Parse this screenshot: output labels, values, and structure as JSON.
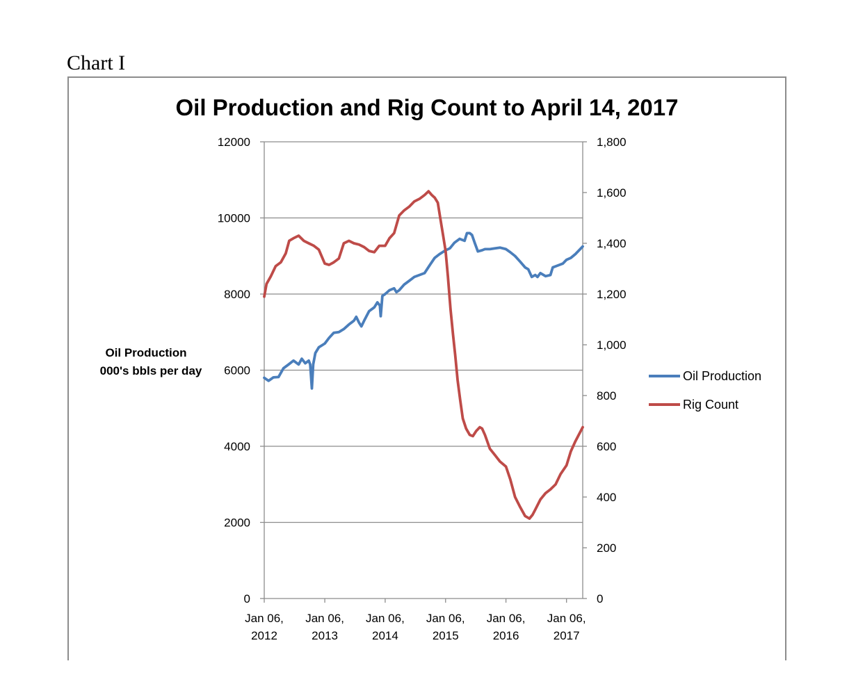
{
  "page": {
    "label": "Chart I"
  },
  "chart_data": {
    "type": "line",
    "title": "Oil Production and Rig Count to April 14, 2017",
    "ylabel_left": [
      "Oil Production",
      "000's bbls per day"
    ],
    "ylabel_right": "",
    "x_ticks": [
      [
        "Jan 06,",
        "2012"
      ],
      [
        "Jan 06,",
        "2013"
      ],
      [
        "Jan 06,",
        "2014"
      ],
      [
        "Jan 06,",
        "2015"
      ],
      [
        "Jan 06,",
        "2016"
      ],
      [
        "Jan 06,",
        "2017"
      ]
    ],
    "x_tick_dates": [
      "2012-01-06",
      "2013-01-06",
      "2014-01-06",
      "2015-01-06",
      "2016-01-06",
      "2017-01-06"
    ],
    "x_range": [
      "2012-01-06",
      "2017-04-14"
    ],
    "y_left_ticks": [
      "0",
      "2000",
      "4000",
      "6000",
      "8000",
      "10000",
      "12000"
    ],
    "y_left_range": [
      0,
      12000
    ],
    "y_right_ticks": [
      "0",
      "200",
      "400",
      "600",
      "800",
      "1,000",
      "1,200",
      "1,400",
      "1,600",
      "1,800"
    ],
    "y_right_range": [
      0,
      1800
    ],
    "grid": true,
    "legend": "right",
    "series": [
      {
        "name": "Oil Production",
        "axis": "left",
        "color": "#4a7ebb",
        "points": [
          [
            "2012-01-06",
            5800
          ],
          [
            "2012-02-01",
            5720
          ],
          [
            "2012-03-01",
            5810
          ],
          [
            "2012-04-01",
            5820
          ],
          [
            "2012-05-01",
            6050
          ],
          [
            "2012-06-01",
            6150
          ],
          [
            "2012-07-01",
            6250
          ],
          [
            "2012-08-01",
            6150
          ],
          [
            "2012-08-20",
            6300
          ],
          [
            "2012-09-10",
            6180
          ],
          [
            "2012-10-01",
            6250
          ],
          [
            "2012-10-10",
            6150
          ],
          [
            "2012-10-20",
            5520
          ],
          [
            "2012-10-28",
            6150
          ],
          [
            "2012-11-10",
            6450
          ],
          [
            "2012-12-01",
            6600
          ],
          [
            "2013-01-06",
            6700
          ],
          [
            "2013-02-01",
            6850
          ],
          [
            "2013-03-01",
            6980
          ],
          [
            "2013-04-01",
            7000
          ],
          [
            "2013-05-01",
            7080
          ],
          [
            "2013-06-01",
            7200
          ],
          [
            "2013-07-01",
            7300
          ],
          [
            "2013-07-15",
            7400
          ],
          [
            "2013-08-01",
            7250
          ],
          [
            "2013-08-15",
            7150
          ],
          [
            "2013-09-01",
            7300
          ],
          [
            "2013-10-01",
            7550
          ],
          [
            "2013-11-01",
            7650
          ],
          [
            "2013-11-20",
            7780
          ],
          [
            "2013-12-05",
            7700
          ],
          [
            "2013-12-10",
            7420
          ],
          [
            "2013-12-20",
            7950
          ],
          [
            "2014-01-06",
            8000
          ],
          [
            "2014-02-01",
            8100
          ],
          [
            "2014-03-01",
            8150
          ],
          [
            "2014-03-15",
            8050
          ],
          [
            "2014-04-01",
            8100
          ],
          [
            "2014-05-01",
            8250
          ],
          [
            "2014-06-01",
            8350
          ],
          [
            "2014-07-01",
            8450
          ],
          [
            "2014-08-01",
            8500
          ],
          [
            "2014-09-01",
            8550
          ],
          [
            "2014-10-01",
            8750
          ],
          [
            "2014-11-01",
            8950
          ],
          [
            "2014-12-01",
            9050
          ],
          [
            "2015-01-06",
            9150
          ],
          [
            "2015-02-01",
            9200
          ],
          [
            "2015-03-01",
            9350
          ],
          [
            "2015-04-01",
            9450
          ],
          [
            "2015-05-01",
            9400
          ],
          [
            "2015-05-15",
            9600
          ],
          [
            "2015-06-01",
            9600
          ],
          [
            "2015-06-15",
            9550
          ],
          [
            "2015-07-01",
            9350
          ],
          [
            "2015-07-20",
            9120
          ],
          [
            "2015-08-15",
            9150
          ],
          [
            "2015-09-01",
            9180
          ],
          [
            "2015-10-01",
            9180
          ],
          [
            "2015-11-01",
            9200
          ],
          [
            "2015-12-01",
            9220
          ],
          [
            "2016-01-06",
            9180
          ],
          [
            "2016-02-01",
            9100
          ],
          [
            "2016-03-01",
            9000
          ],
          [
            "2016-04-01",
            8850
          ],
          [
            "2016-05-01",
            8700
          ],
          [
            "2016-05-20",
            8650
          ],
          [
            "2016-06-10",
            8450
          ],
          [
            "2016-07-01",
            8500
          ],
          [
            "2016-07-15",
            8450
          ],
          [
            "2016-08-01",
            8550
          ],
          [
            "2016-09-01",
            8470
          ],
          [
            "2016-10-01",
            8500
          ],
          [
            "2016-10-15",
            8700
          ],
          [
            "2016-11-15",
            8750
          ],
          [
            "2016-12-15",
            8800
          ],
          [
            "2017-01-06",
            8900
          ],
          [
            "2017-02-01",
            8950
          ],
          [
            "2017-03-01",
            9050
          ],
          [
            "2017-04-14",
            9250
          ]
        ]
      },
      {
        "name": "Rig Count",
        "axis": "right",
        "color": "#be4b48",
        "points": [
          [
            "2012-01-06",
            1190
          ],
          [
            "2012-01-20",
            1240
          ],
          [
            "2012-02-15",
            1270
          ],
          [
            "2012-03-15",
            1310
          ],
          [
            "2012-04-15",
            1325
          ],
          [
            "2012-05-15",
            1360
          ],
          [
            "2012-06-05",
            1410
          ],
          [
            "2012-07-01",
            1420
          ],
          [
            "2012-08-01",
            1430
          ],
          [
            "2012-09-01",
            1410
          ],
          [
            "2012-10-01",
            1400
          ],
          [
            "2012-11-01",
            1390
          ],
          [
            "2012-12-01",
            1375
          ],
          [
            "2013-01-06",
            1320
          ],
          [
            "2013-02-01",
            1315
          ],
          [
            "2013-03-01",
            1325
          ],
          [
            "2013-04-01",
            1340
          ],
          [
            "2013-05-01",
            1400
          ],
          [
            "2013-06-01",
            1410
          ],
          [
            "2013-07-01",
            1400
          ],
          [
            "2013-08-01",
            1395
          ],
          [
            "2013-09-01",
            1385
          ],
          [
            "2013-10-01",
            1370
          ],
          [
            "2013-11-01",
            1365
          ],
          [
            "2013-12-01",
            1390
          ],
          [
            "2014-01-06",
            1390
          ],
          [
            "2014-02-01",
            1420
          ],
          [
            "2014-03-01",
            1440
          ],
          [
            "2014-04-01",
            1510
          ],
          [
            "2014-05-01",
            1530
          ],
          [
            "2014-06-01",
            1545
          ],
          [
            "2014-07-01",
            1565
          ],
          [
            "2014-08-01",
            1575
          ],
          [
            "2014-09-01",
            1590
          ],
          [
            "2014-09-25",
            1605
          ],
          [
            "2014-10-15",
            1590
          ],
          [
            "2014-11-01",
            1580
          ],
          [
            "2014-11-20",
            1560
          ],
          [
            "2014-12-05",
            1500
          ],
          [
            "2014-12-20",
            1440
          ],
          [
            "2015-01-06",
            1370
          ],
          [
            "2015-01-20",
            1270
          ],
          [
            "2015-02-05",
            1140
          ],
          [
            "2015-02-20",
            1040
          ],
          [
            "2015-03-05",
            960
          ],
          [
            "2015-03-20",
            860
          ],
          [
            "2015-04-05",
            780
          ],
          [
            "2015-04-20",
            710
          ],
          [
            "2015-05-10",
            670
          ],
          [
            "2015-06-01",
            645
          ],
          [
            "2015-06-20",
            640
          ],
          [
            "2015-07-10",
            660
          ],
          [
            "2015-08-01",
            675
          ],
          [
            "2015-08-15",
            670
          ],
          [
            "2015-09-01",
            645
          ],
          [
            "2015-10-01",
            590
          ],
          [
            "2015-11-01",
            565
          ],
          [
            "2015-12-01",
            540
          ],
          [
            "2016-01-06",
            520
          ],
          [
            "2016-02-01",
            470
          ],
          [
            "2016-03-01",
            400
          ],
          [
            "2016-04-01",
            360
          ],
          [
            "2016-05-01",
            325
          ],
          [
            "2016-05-27",
            315
          ],
          [
            "2016-06-15",
            330
          ],
          [
            "2016-07-01",
            350
          ],
          [
            "2016-08-01",
            390
          ],
          [
            "2016-09-01",
            415
          ],
          [
            "2016-10-01",
            430
          ],
          [
            "2016-11-01",
            450
          ],
          [
            "2016-12-01",
            490
          ],
          [
            "2017-01-06",
            525
          ],
          [
            "2017-02-01",
            580
          ],
          [
            "2017-03-01",
            620
          ],
          [
            "2017-04-14",
            675
          ]
        ]
      }
    ]
  }
}
